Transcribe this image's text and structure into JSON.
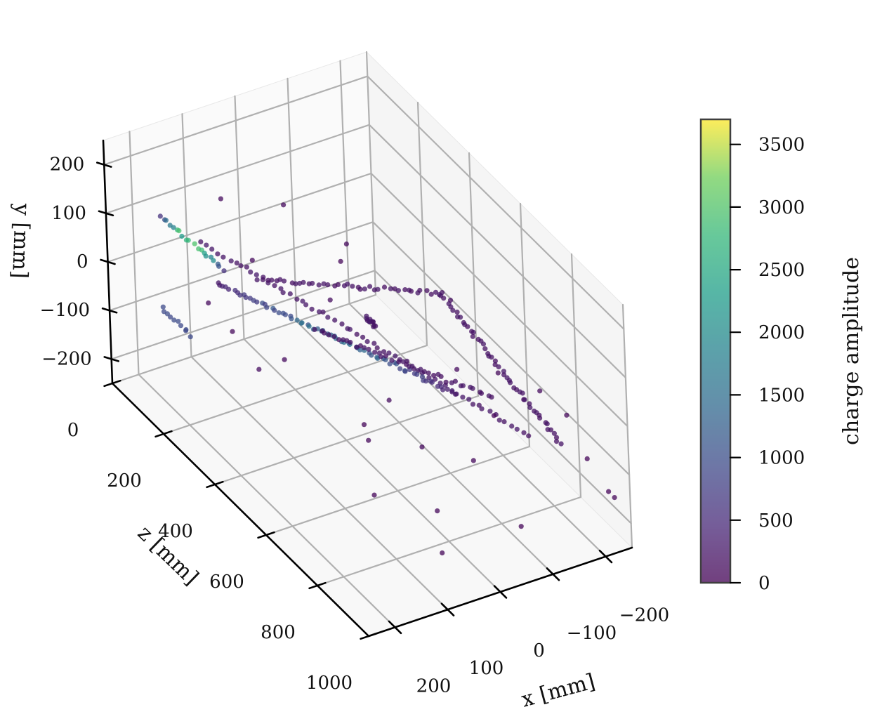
{
  "chart_data": {
    "type": "scatter",
    "projection": "3d",
    "title": "",
    "axes": {
      "x": {
        "label": "x [mm]",
        "range": [
          -250,
          250
        ],
        "ticks": [
          -200,
          -100,
          0,
          100,
          200
        ],
        "tick_labels": [
          "−200",
          "−100",
          "0",
          "100",
          "200"
        ]
      },
      "y": {
        "label": "y [mm]",
        "range": [
          -250,
          250
        ],
        "ticks": [
          -200,
          -100,
          0,
          100,
          200
        ],
        "tick_labels": [
          "−200",
          "−100",
          "0",
          "100",
          "200"
        ]
      },
      "z": {
        "label": "z [mm]",
        "range": [
          0,
          1000
        ],
        "ticks": [
          0,
          200,
          400,
          600,
          800,
          1000
        ],
        "tick_labels": [
          "0",
          "200",
          "400",
          "600",
          "800",
          "1000"
        ]
      }
    },
    "grid": true,
    "colorbar": {
      "label": "charge amplitude",
      "colormap": "viridis",
      "range": [
        0,
        3700
      ],
      "ticks": [
        0,
        500,
        1000,
        1500,
        2000,
        2500,
        3000,
        3500
      ],
      "tick_labels": [
        "0",
        "500",
        "1000",
        "1500",
        "2000",
        "2500",
        "3000",
        "3500"
      ]
    },
    "tracks": [
      {
        "from": [
          110,
          30,
          80
        ],
        "to": [
          -110,
          -20,
          900
        ],
        "count": 60,
        "charge": 180
      },
      {
        "from": [
          140,
          20,
          200
        ],
        "to": [
          -40,
          20,
          760
        ],
        "count": 70,
        "charge": 250,
        "amp_rise": 1400
      },
      {
        "from": [
          60,
          10,
          420
        ],
        "to": [
          -100,
          0,
          780
        ],
        "count": 40,
        "charge": 150
      },
      {
        "from": [
          175,
          100,
          60
        ],
        "to": [
          135,
          55,
          220
        ],
        "count": 20,
        "charge": 600,
        "amp_rise": 3000
      },
      {
        "from": [
          90,
          40,
          260
        ],
        "to": [
          -150,
          40,
          480
        ],
        "count": 40,
        "charge": 150
      },
      {
        "from": [
          -150,
          40,
          480
        ],
        "to": [
          -170,
          -60,
          900
        ],
        "count": 50,
        "charge": 150
      },
      {
        "from": [
          -25,
          20,
          450
        ],
        "to": [
          -45,
          -15,
          430
        ],
        "count": 12,
        "charge": 200
      },
      {
        "from": [
          240,
          0,
          190
        ],
        "to": [
          210,
          -40,
          240
        ],
        "count": 10,
        "charge": 900
      }
    ],
    "scattered_points": [
      [
        0,
        120,
        180,
        120
      ],
      [
        -60,
        80,
        300,
        100
      ],
      [
        80,
        120,
        100,
        120
      ],
      [
        -140,
        60,
        540,
        150
      ],
      [
        -190,
        -20,
        780,
        120
      ],
      [
        -220,
        -60,
        820,
        90
      ],
      [
        -130,
        -80,
        720,
        60
      ],
      [
        40,
        -120,
        560,
        80
      ],
      [
        -30,
        -150,
        640,
        110
      ],
      [
        20,
        -180,
        800,
        90
      ],
      [
        -90,
        -200,
        900,
        70
      ],
      [
        60,
        -200,
        900,
        80
      ],
      [
        150,
        -60,
        380,
        150
      ],
      [
        180,
        20,
        250,
        100
      ],
      [
        160,
        -20,
        300,
        90
      ],
      [
        10,
        -60,
        600,
        140
      ],
      [
        -70,
        -130,
        760,
        100
      ],
      [
        -210,
        -120,
        1000,
        60
      ],
      [
        -230,
        -150,
        980,
        80
      ],
      [
        100,
        -160,
        720,
        70
      ],
      [
        70,
        -100,
        640,
        90
      ],
      [
        -110,
        -30,
        620,
        120
      ],
      [
        30,
        60,
        420,
        140
      ],
      [
        -20,
        90,
        360,
        80
      ],
      [
        120,
        -30,
        420,
        110
      ],
      [
        90,
        70,
        240,
        100
      ],
      [
        -150,
        -10,
        700,
        90
      ],
      [
        -200,
        -80,
        940,
        70
      ]
    ]
  }
}
